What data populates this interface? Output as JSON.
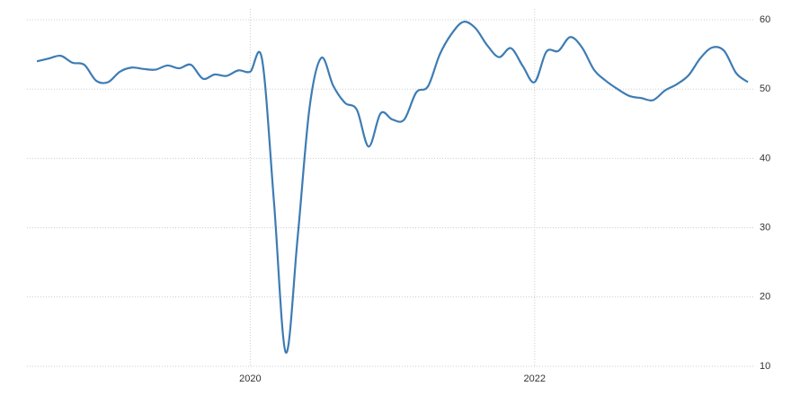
{
  "chart_data": {
    "type": "line",
    "x": [
      2018.5,
      2018.583,
      2018.667,
      2018.75,
      2018.833,
      2018.917,
      2019,
      2019.083,
      2019.167,
      2019.25,
      2019.333,
      2019.417,
      2019.5,
      2019.583,
      2019.667,
      2019.75,
      2019.833,
      2019.917,
      2020,
      2020.083,
      2020.167,
      2020.25,
      2020.333,
      2020.417,
      2020.5,
      2020.583,
      2020.667,
      2020.75,
      2020.833,
      2020.917,
      2021,
      2021.083,
      2021.167,
      2021.25,
      2021.333,
      2021.417,
      2021.5,
      2021.583,
      2021.667,
      2021.75,
      2021.833,
      2021.917,
      2022,
      2022.083,
      2022.167,
      2022.25,
      2022.333,
      2022.417,
      2022.5,
      2022.583,
      2022.667,
      2022.75,
      2022.833,
      2022.917,
      2023,
      2023.083,
      2023.167,
      2023.25,
      2023.333,
      2023.417,
      2023.5
    ],
    "values": [
      54.0,
      54.4,
      54.8,
      53.8,
      53.5,
      51.2,
      51.0,
      52.5,
      53.1,
      52.9,
      52.8,
      53.4,
      53.0,
      53.5,
      51.5,
      52.1,
      51.9,
      52.7,
      52.5,
      54.3,
      33.7,
      12.0,
      28.5,
      47.3,
      54.5,
      50.5,
      48.0,
      47.0,
      41.7,
      46.5,
      45.6,
      45.6,
      49.5,
      50.4,
      55.0,
      58.0,
      59.7,
      58.8,
      56.3,
      54.6,
      55.9,
      53.3,
      51.0,
      55.4,
      55.5,
      57.5,
      56.0,
      52.8,
      51.2,
      50.0,
      49.0,
      48.7,
      48.4,
      49.8,
      50.7,
      52.0,
      54.5,
      56.0,
      55.5,
      52.3,
      51.0
    ],
    "color": "#3d7cb3",
    "xlim": [
      2018.43,
      2023.55
    ],
    "xticks": [
      2020,
      2022
    ],
    "ylim": [
      10,
      60
    ],
    "yticks": [
      10,
      20,
      30,
      40,
      50,
      60
    ],
    "grid": true
  }
}
